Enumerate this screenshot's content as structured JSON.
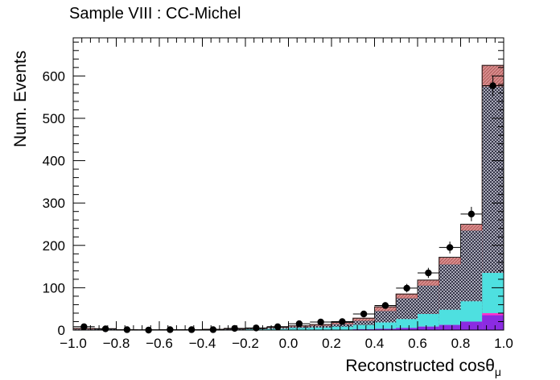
{
  "chart_data": {
    "type": "bar",
    "title": "Sample VIII : CC-Michel",
    "xlabel": "Reconstructed cos",
    "xlabel_symbol": "θ",
    "xlabel_subscript": "μ",
    "ylabel": "Num. Events",
    "xlim": [
      -1.0,
      1.0
    ],
    "ylim": [
      0,
      690
    ],
    "x_ticks": [
      "−1.0",
      "−0.8",
      "−0.6",
      "−0.4",
      "−0.2",
      "0.0",
      "0.2",
      "0.4",
      "0.6",
      "0.8",
      "1.0"
    ],
    "y_ticks": [
      "0",
      "100",
      "200",
      "300",
      "400",
      "500",
      "600"
    ],
    "bin_edges": [
      -1.0,
      -0.9,
      -0.8,
      -0.7,
      -0.6,
      -0.5,
      -0.4,
      -0.3,
      -0.2,
      -0.1,
      0.0,
      0.1,
      0.2,
      0.3,
      0.4,
      0.5,
      0.6,
      0.7,
      0.8,
      0.9,
      1.0
    ],
    "series": [
      {
        "color": "#8b2be2",
        "values": [
          0,
          0,
          0,
          0,
          0,
          0,
          0,
          0,
          0,
          0,
          0,
          1,
          1,
          2,
          3,
          5,
          8,
          12,
          20,
          35
        ]
      },
      {
        "color": "#ff33cc",
        "values": [
          0,
          0,
          0,
          0,
          0,
          0,
          0,
          0,
          0,
          0,
          0,
          1,
          1,
          2,
          3,
          5,
          8,
          12,
          20,
          40
        ]
      },
      {
        "color": "#4ee0e0",
        "values": [
          1,
          1,
          0,
          0,
          0,
          0,
          1,
          1,
          2,
          3,
          5,
          6,
          8,
          12,
          18,
          26,
          38,
          48,
          68,
          135
        ]
      },
      {
        "color": "#2c3a8c",
        "values": [
          2,
          2,
          1,
          1,
          1,
          1,
          1,
          2,
          3,
          5,
          8,
          10,
          14,
          22,
          45,
          75,
          105,
          155,
          235,
          575
        ]
      },
      {
        "color": "#d88c8c",
        "values": [
          4,
          3,
          1,
          1,
          1,
          1,
          2,
          3,
          4,
          7,
          10,
          13,
          18,
          28,
          55,
          85,
          118,
          172,
          250,
          625
        ]
      }
    ],
    "data_points": {
      "x": [
        -0.95,
        -0.85,
        -0.75,
        -0.65,
        -0.55,
        -0.45,
        -0.35,
        -0.25,
        -0.15,
        -0.05,
        0.05,
        0.15,
        0.25,
        0.35,
        0.45,
        0.55,
        0.65,
        0.75,
        0.85,
        0.95
      ],
      "y": [
        8,
        3,
        1,
        0,
        1,
        1,
        1,
        4,
        5,
        8,
        15,
        19,
        20,
        38,
        58,
        99,
        135,
        195,
        274,
        577
      ],
      "yerr": [
        3,
        2,
        1,
        1,
        1,
        1,
        1,
        2,
        2,
        3,
        4,
        4,
        4,
        6,
        8,
        10,
        12,
        14,
        17,
        24
      ]
    },
    "grid": false,
    "legend": "none"
  }
}
